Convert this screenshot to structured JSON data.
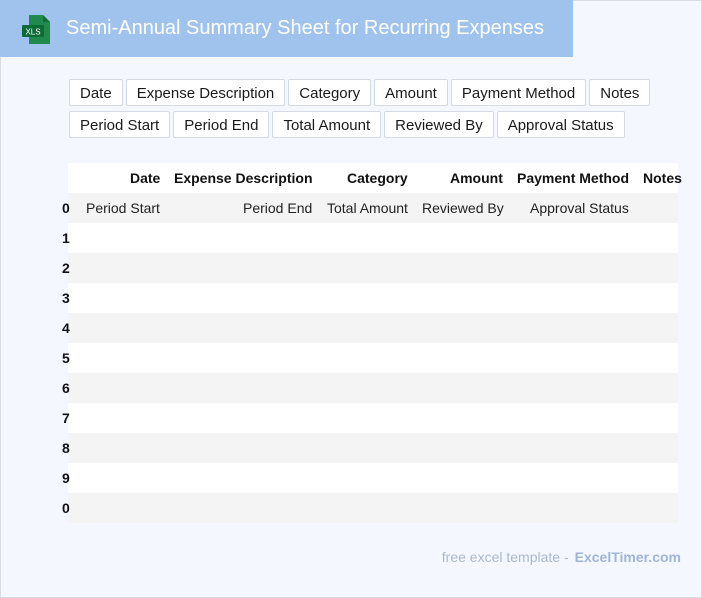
{
  "header": {
    "title": "Semi-Annual Summary Sheet for Recurring Expenses",
    "icon_label": "XLS",
    "icon": "xls-file-icon",
    "color": "#9fc3ed"
  },
  "fields_row1": [
    "Date",
    "Expense Description",
    "Category",
    "Amount",
    "Payment Method",
    "Notes"
  ],
  "fields_row2": [
    "Period Start",
    "Period End",
    "Total Amount",
    "Reviewed By",
    "Approval Status"
  ],
  "table": {
    "columns": [
      "Date",
      "Expense Description",
      "Category",
      "Amount",
      "Payment Method",
      "Notes"
    ],
    "first_row": {
      "index": "0",
      "period_start": "Period Start",
      "period_end": "Period End",
      "total_amount": "Total Amount",
      "reviewed_by": "Reviewed By",
      "approval_status": "Approval Status"
    },
    "row_indices": [
      "1",
      "2",
      "3",
      "4",
      "5",
      "6",
      "7",
      "8",
      "9",
      "0"
    ]
  },
  "footer": {
    "text": "free excel template -",
    "brand": "ExcelTimer.com"
  }
}
